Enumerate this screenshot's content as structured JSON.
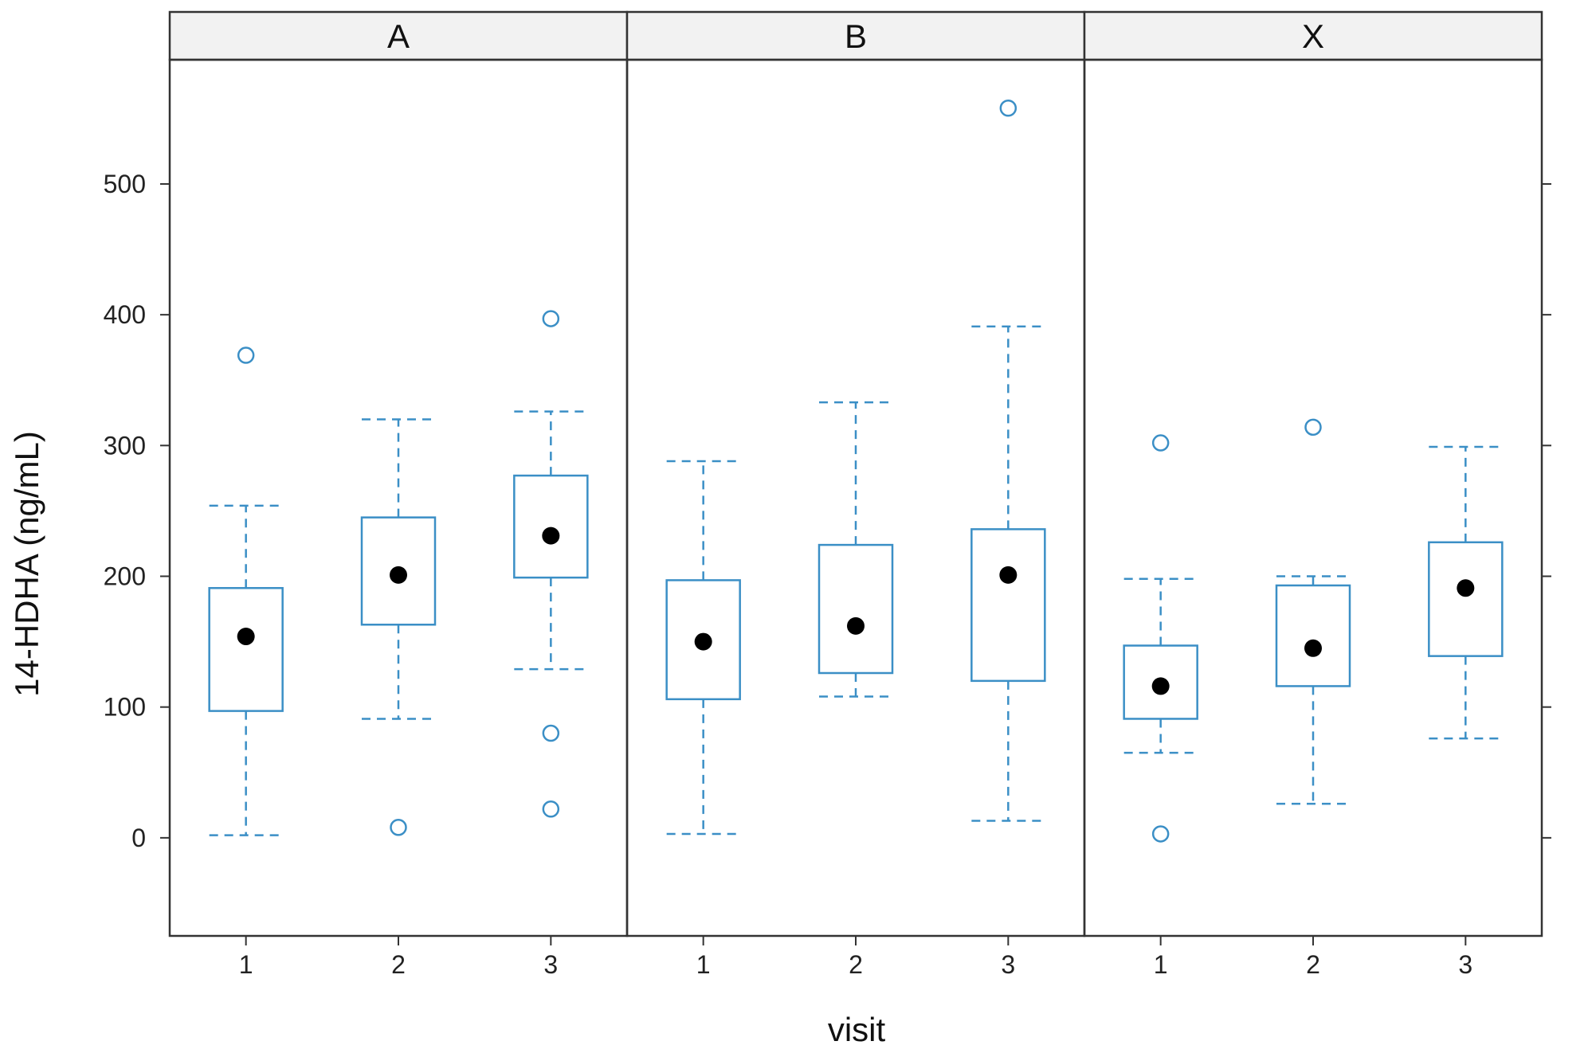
{
  "chart_data": {
    "type": "box",
    "xlabel": "visit",
    "ylabel": "14-HDHA (ng/mL)",
    "ylim": [
      -75,
      595
    ],
    "yticks": [
      0,
      100,
      200,
      300,
      400,
      500
    ],
    "colors": {
      "box": "#3b8fc6",
      "median": "#000000",
      "strip_fill": "#f2f2f2",
      "frame": "#333333"
    },
    "panels": [
      {
        "name": "A",
        "groups": [
          {
            "visit": "1",
            "whisker_low": 2,
            "q1": 97,
            "median": 154,
            "q3": 191,
            "whisker_high": 254,
            "outliers": [
              369
            ]
          },
          {
            "visit": "2",
            "whisker_low": 91,
            "q1": 163,
            "median": 201,
            "q3": 245,
            "whisker_high": 320,
            "outliers": [
              8
            ]
          },
          {
            "visit": "3",
            "whisker_low": 129,
            "q1": 199,
            "median": 231,
            "q3": 277,
            "whisker_high": 326,
            "outliers": [
              397,
              80,
              22
            ]
          }
        ]
      },
      {
        "name": "B",
        "groups": [
          {
            "visit": "1",
            "whisker_low": 3,
            "q1": 106,
            "median": 150,
            "q3": 197,
            "whisker_high": 288,
            "outliers": []
          },
          {
            "visit": "2",
            "whisker_low": 108,
            "q1": 126,
            "median": 162,
            "q3": 224,
            "whisker_high": 333,
            "outliers": []
          },
          {
            "visit": "3",
            "whisker_low": 13,
            "q1": 120,
            "median": 201,
            "q3": 236,
            "whisker_high": 391,
            "outliers": [
              558
            ]
          }
        ]
      },
      {
        "name": "X",
        "groups": [
          {
            "visit": "1",
            "whisker_low": 65,
            "q1": 91,
            "median": 116,
            "q3": 147,
            "whisker_high": 198,
            "outliers": [
              302,
              3
            ]
          },
          {
            "visit": "2",
            "whisker_low": 26,
            "q1": 116,
            "median": 145,
            "q3": 193,
            "whisker_high": 200,
            "outliers": [
              314
            ]
          },
          {
            "visit": "3",
            "whisker_low": 76,
            "q1": 139,
            "median": 191,
            "q3": 226,
            "whisker_high": 299,
            "outliers": []
          }
        ]
      }
    ]
  }
}
